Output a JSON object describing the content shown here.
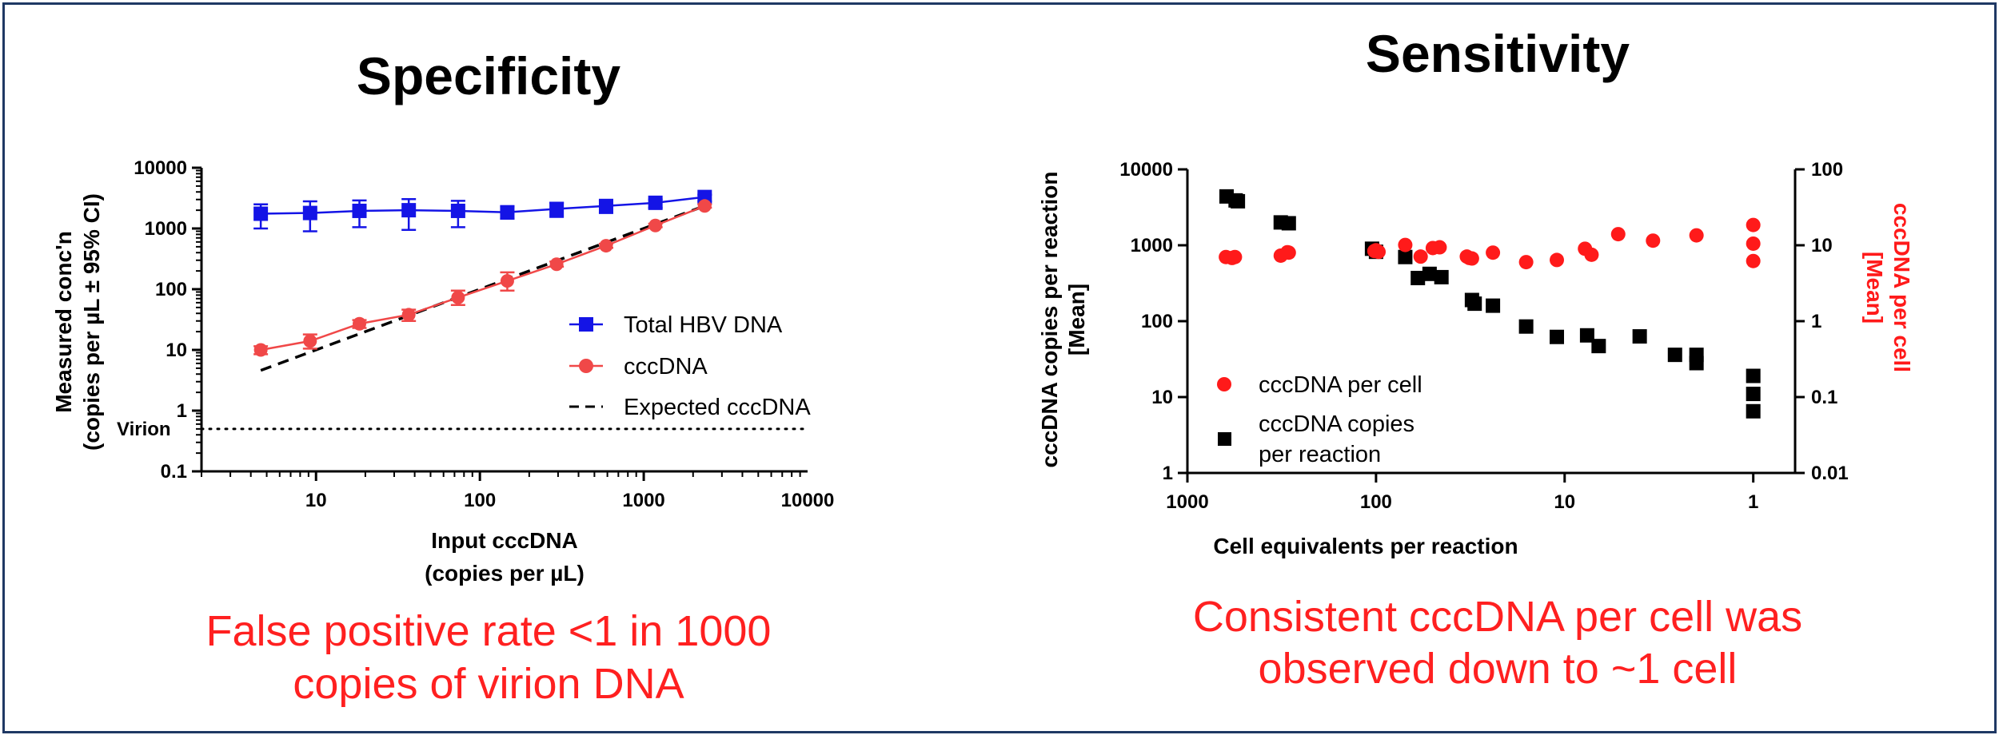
{
  "colors": {
    "border": "#1f3864",
    "blue": "#1414e6",
    "red": "#f04848",
    "bright_red": "#ff1a1a",
    "black": "#000000",
    "caption": "#ff2020"
  },
  "chart_data": [
    {
      "type": "line",
      "title": "Specificity",
      "xlabel": [
        "Input cccDNA",
        "(copies per µL)"
      ],
      "ylabel": [
        "Measured conc'n",
        "(copies per µL ± 95% CI)"
      ],
      "xscale": "log",
      "yscale": "log",
      "xlim": [
        2,
        10000
      ],
      "ylim": [
        0.1,
        10000
      ],
      "xticks": [
        "10",
        "100",
        "1000",
        "10000"
      ],
      "yticks": [
        "0.1",
        "1",
        "10",
        "100",
        "1000",
        "10000"
      ],
      "legend_position": "lower-right",
      "reference_line": {
        "label": "Virion",
        "y": 0.5,
        "style": "dotted"
      },
      "series": [
        {
          "name": "Total HBV DNA",
          "marker": "square",
          "color": "#1414e6",
          "x": [
            4.6,
            9.2,
            18.4,
            36.8,
            73.6,
            147,
            294,
            589,
            1178,
            2355
          ],
          "y": [
            1750,
            1800,
            1950,
            2000,
            1950,
            1850,
            2100,
            2350,
            2650,
            3300
          ],
          "err_low": [
            1000,
            900,
            1050,
            950,
            1050,
            1450,
            1550,
            1800,
            2200,
            2800
          ],
          "err_high": [
            2500,
            2800,
            2900,
            3050,
            2850,
            2300,
            2650,
            2900,
            3000,
            3600
          ]
        },
        {
          "name": "cccDNA",
          "marker": "circle",
          "color": "#f04848",
          "x": [
            4.6,
            9.2,
            18.4,
            36.8,
            73.6,
            147,
            294,
            589,
            1178,
            2355
          ],
          "y": [
            10,
            14,
            27,
            38,
            73,
            137,
            258,
            520,
            1120,
            2350
          ],
          "err_low": [
            8.5,
            10.5,
            23,
            30,
            55,
            95,
            235,
            480,
            1050,
            2200
          ],
          "err_high": [
            11.5,
            18,
            31,
            46,
            95,
            190,
            285,
            560,
            1200,
            2500
          ]
        },
        {
          "name": "Expected cccDNA",
          "style": "dashed",
          "color": "#000000",
          "x": [
            4.6,
            2355
          ],
          "y": [
            4.6,
            2355
          ]
        }
      ]
    },
    {
      "type": "scatter",
      "title": "Sensitivity",
      "xlabel": "Cell equivalents per reaction",
      "ylabel_left": [
        "cccDNA copies per reaction",
        "[Mean]"
      ],
      "ylabel_right": [
        "cccDNA per cell",
        "[Mean]"
      ],
      "xscale": "log-reversed",
      "xlim": [
        1000,
        0.6
      ],
      "ylim_left": [
        1,
        10000
      ],
      "ylim_right": [
        0.01,
        100
      ],
      "xticks": [
        "1000",
        "100",
        "10",
        "1"
      ],
      "yticks_left": [
        "1",
        "10",
        "100",
        "1000",
        "10000"
      ],
      "yticks_right": [
        "0.01",
        "0.1",
        "1",
        "10",
        "100"
      ],
      "legend_position": "lower-left",
      "series": [
        {
          "name": "cccDNA per cell",
          "marker": "circle",
          "color": "#ff1a1a",
          "axis": "right",
          "x": [
            625,
            580,
            560,
            320,
            295,
            290,
            102,
            100,
            97,
            70,
            58,
            50,
            46,
            33,
            32,
            31,
            24,
            16,
            11,
            7.8,
            7.2,
            5.2,
            3.4,
            2,
            1,
            1,
            1
          ],
          "y": [
            7,
            6.8,
            7,
            7.3,
            8.1,
            8,
            8.4,
            8.6,
            8.2,
            10.1,
            7.1,
            9.2,
            9.4,
            7.1,
            6.8,
            6.7,
            8,
            6,
            6.4,
            9,
            7.5,
            14,
            11.5,
            13.5,
            18.5,
            10.5,
            6.2
          ],
          "y_units": "cccDNA per cell"
        },
        {
          "name": "cccDNA copies per reaction",
          "marker": "square",
          "color": "#000000",
          "axis": "left",
          "x": [
            620,
            555,
            540,
            320,
            290,
            105,
            100,
            70,
            60,
            52,
            45,
            31,
            30,
            24,
            16,
            11,
            7.6,
            6.6,
            4,
            2.6,
            2,
            2,
            1,
            1,
            1
          ],
          "y": [
            4400,
            3900,
            3800,
            2000,
            1950,
            900,
            820,
            700,
            370,
            420,
            380,
            190,
            170,
            160,
            85,
            62,
            65,
            47,
            63,
            36,
            36,
            28,
            19,
            11,
            6.5
          ],
          "y_units": "copies per reaction"
        }
      ]
    }
  ],
  "captions": {
    "left": [
      "False positive rate <1 in 1000",
      "copies of virion DNA"
    ],
    "right": [
      "Consistent cccDNA per cell was",
      "observed down to ~1 cell"
    ]
  }
}
